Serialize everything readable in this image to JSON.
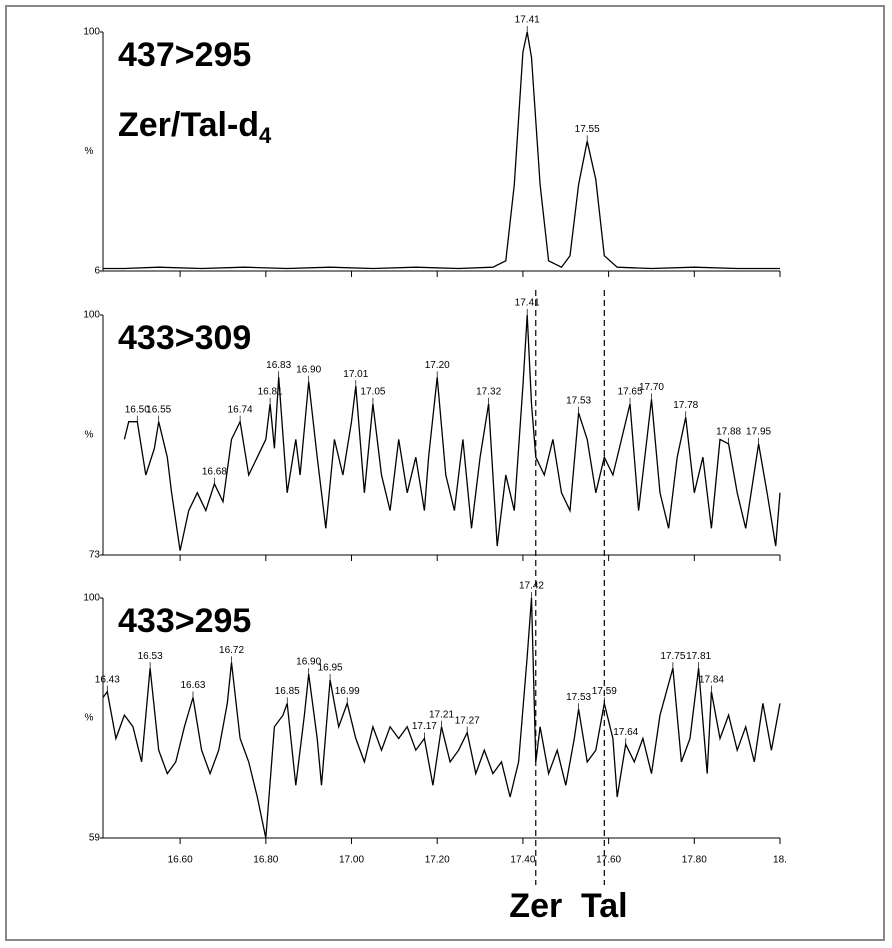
{
  "chart_data": [
    {
      "type": "line",
      "title": "437>295",
      "subtitle": {
        "text": "Zer/Tal-d",
        "sub": "4"
      },
      "ylabel": "%",
      "color": "#000000",
      "xlim": [
        16.42,
        18.0
      ],
      "ylim": [
        6,
        100
      ],
      "yticks": [
        6,
        100
      ],
      "xticks": [
        16.6,
        16.8,
        17.0,
        17.2,
        17.4,
        17.6,
        17.8,
        18.0
      ],
      "x": [
        16.42,
        16.47,
        16.55,
        16.65,
        16.75,
        16.85,
        16.95,
        17.05,
        17.15,
        17.25,
        17.33,
        17.36,
        17.38,
        17.4,
        17.41,
        17.42,
        17.44,
        17.46,
        17.49,
        17.51,
        17.53,
        17.55,
        17.57,
        17.59,
        17.62,
        17.7,
        17.8,
        17.9,
        18.0
      ],
      "values": [
        7,
        7,
        7.5,
        7,
        7.5,
        7,
        7.5,
        7,
        7.5,
        7,
        7.5,
        10,
        40,
        92,
        100,
        90,
        40,
        10,
        7.5,
        12,
        40,
        57,
        42,
        12,
        7.5,
        7,
        7.5,
        7,
        7
      ],
      "peaks": {
        "x": [
          17.41,
          17.55
        ],
        "values": [
          100,
          57
        ],
        "x_labels": [
          "17.41",
          "17.55"
        ]
      }
    },
    {
      "type": "line",
      "title": "433>309",
      "ylabel": "%",
      "color": "#000000",
      "xlim": [
        16.42,
        18.0
      ],
      "ylim": [
        73,
        100
      ],
      "yticks": [
        73,
        100
      ],
      "xticks": [
        16.6,
        16.8,
        17.0,
        17.2,
        17.4,
        17.6,
        17.8,
        18.0
      ],
      "x": [
        16.47,
        16.48,
        16.5,
        16.52,
        16.54,
        16.55,
        16.57,
        16.58,
        16.6,
        16.62,
        16.64,
        16.66,
        16.68,
        16.7,
        16.72,
        16.74,
        16.76,
        16.78,
        16.8,
        16.81,
        16.82,
        16.83,
        16.85,
        16.87,
        16.88,
        16.9,
        16.92,
        16.94,
        16.96,
        16.98,
        17.0,
        17.01,
        17.03,
        17.05,
        17.07,
        17.09,
        17.11,
        17.13,
        17.15,
        17.17,
        17.18,
        17.2,
        17.22,
        17.24,
        17.26,
        17.28,
        17.3,
        17.32,
        17.34,
        17.36,
        17.38,
        17.4,
        17.41,
        17.42,
        17.43,
        17.45,
        17.47,
        17.49,
        17.51,
        17.53,
        17.55,
        17.57,
        17.59,
        17.61,
        17.63,
        17.65,
        17.67,
        17.7,
        17.72,
        17.74,
        17.76,
        17.78,
        17.8,
        17.82,
        17.84,
        17.86,
        17.88,
        17.9,
        17.92,
        17.95,
        17.97,
        17.99,
        18.0
      ],
      "values": [
        86,
        88,
        88,
        82,
        85,
        88,
        84,
        80,
        73.5,
        78,
        80,
        78,
        81,
        79,
        86,
        88,
        82,
        84,
        86,
        90,
        85,
        93,
        80,
        86,
        82,
        92.5,
        84,
        76,
        86,
        82,
        88,
        92,
        80,
        90,
        82,
        78,
        86,
        80,
        84,
        78,
        84,
        93,
        82,
        78,
        86,
        76,
        84,
        90,
        74,
        82,
        78,
        92,
        100,
        90,
        84,
        82,
        86,
        80,
        78,
        89,
        86,
        80,
        84,
        82,
        86,
        90,
        78,
        90.5,
        80,
        76,
        84,
        88.5,
        80,
        84,
        76,
        86,
        85.5,
        80,
        76,
        85.5,
        80,
        74,
        80
      ],
      "peaks": {
        "x": [
          16.5,
          16.55,
          16.68,
          16.74,
          16.81,
          16.83,
          16.9,
          17.01,
          17.05,
          17.2,
          17.32,
          17.41,
          17.53,
          17.65,
          17.7,
          17.78,
          17.88,
          17.95
        ],
        "values": [
          88,
          88,
          81,
          88,
          90,
          93,
          92.5,
          92,
          90,
          93,
          90,
          100,
          89,
          90,
          90.5,
          88.5,
          85.5,
          85.5
        ],
        "x_labels": [
          "16.50",
          "16.55",
          "16.68",
          "16.74",
          "16.81",
          "16.83",
          "16.90",
          "17.01",
          "17.05",
          "17.20",
          "17.32",
          "17.41",
          "17.53",
          "17.65",
          "17.70",
          "17.78",
          "17.88",
          "17.95"
        ]
      }
    },
    {
      "type": "line",
      "title": "433>295",
      "ylabel": "%",
      "color": "#000000",
      "xlim": [
        16.42,
        18.0
      ],
      "ylim": [
        59,
        100
      ],
      "yticks": [
        59,
        100
      ],
      "xticks": [
        {
          "value": 16.6,
          "label": "16.60"
        },
        {
          "value": 16.8,
          "label": "16.80"
        },
        {
          "value": 17.0,
          "label": "17.00"
        },
        {
          "value": 17.2,
          "label": "17.20"
        },
        {
          "value": 17.4,
          "label": "17.40"
        },
        {
          "value": 17.6,
          "label": "17.60"
        },
        {
          "value": 17.8,
          "label": "17.80"
        },
        {
          "value": 18.0,
          "label": "18."
        }
      ],
      "x": [
        16.42,
        16.43,
        16.45,
        16.47,
        16.49,
        16.51,
        16.53,
        16.55,
        16.57,
        16.59,
        16.61,
        16.63,
        16.65,
        16.67,
        16.69,
        16.71,
        16.72,
        16.74,
        16.76,
        16.78,
        16.8,
        16.82,
        16.84,
        16.85,
        16.87,
        16.89,
        16.9,
        16.92,
        16.93,
        16.95,
        16.97,
        16.99,
        17.01,
        17.03,
        17.05,
        17.07,
        17.09,
        17.11,
        17.13,
        17.15,
        17.17,
        17.19,
        17.21,
        17.23,
        17.25,
        17.27,
        17.29,
        17.31,
        17.33,
        17.35,
        17.37,
        17.39,
        17.41,
        17.42,
        17.43,
        17.44,
        17.46,
        17.48,
        17.5,
        17.52,
        17.53,
        17.55,
        17.57,
        17.59,
        17.61,
        17.62,
        17.64,
        17.66,
        17.68,
        17.7,
        17.72,
        17.75,
        17.77,
        17.79,
        17.81,
        17.83,
        17.84,
        17.86,
        17.88,
        17.9,
        17.92,
        17.94,
        17.96,
        17.98,
        18.0
      ],
      "values": [
        83,
        84,
        76,
        80,
        78,
        72,
        88,
        74,
        70,
        72,
        78,
        83,
        74,
        70,
        74,
        82,
        89,
        76,
        72,
        66,
        59,
        78,
        80,
        82,
        68,
        80,
        87,
        76,
        68,
        86,
        78,
        82,
        76,
        72,
        78,
        74,
        78,
        76,
        78,
        74,
        76,
        68,
        78,
        72,
        74,
        77,
        70,
        74,
        70,
        72,
        66,
        72,
        90,
        100,
        72,
        78,
        70,
        74,
        68,
        76,
        81,
        72,
        74,
        82,
        76,
        66,
        75,
        72,
        76,
        70,
        80,
        88,
        72,
        76,
        88,
        70,
        84,
        76,
        80,
        74,
        78,
        72,
        82,
        74,
        82
      ],
      "peaks": {
        "x": [
          16.43,
          16.53,
          16.63,
          16.72,
          16.85,
          16.9,
          16.95,
          16.99,
          17.17,
          17.21,
          17.27,
          17.42,
          17.53,
          17.59,
          17.64,
          17.75,
          17.81,
          17.84
        ],
        "values": [
          84,
          88,
          83,
          89,
          82,
          87,
          86,
          82,
          76,
          78,
          77,
          100,
          81,
          82,
          75,
          88,
          88,
          84
        ],
        "x_labels": [
          "16.43",
          "16.53",
          "16.63",
          "16.72",
          "16.85",
          "16.90",
          "16.95",
          "16.99",
          "17.17",
          "17.21",
          "17.27",
          "17.42",
          "17.53",
          "17.59",
          "17.64",
          "17.75",
          "17.81",
          "17.84"
        ]
      }
    }
  ],
  "markers": {
    "labels": [
      "Zer",
      "Tal"
    ],
    "x": [
      17.43,
      17.59
    ]
  }
}
